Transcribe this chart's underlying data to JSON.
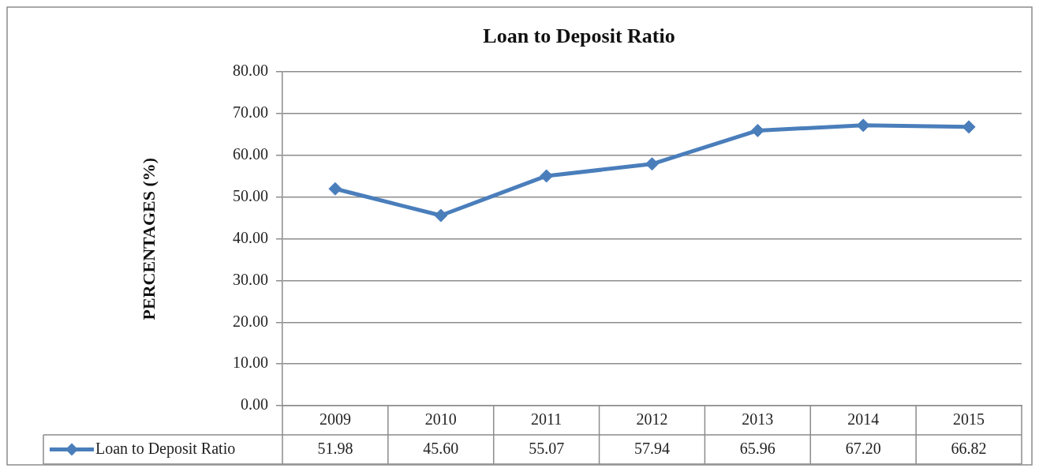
{
  "chart_data": {
    "type": "line",
    "title": "Loan to Deposit Ratio",
    "ylabel": "PERCENTAGES (%)",
    "categories": [
      "2009",
      "2010",
      "2011",
      "2012",
      "2013",
      "2014",
      "2015"
    ],
    "series": [
      {
        "name": "Loan to Deposit Ratio",
        "color": "#4a7ebb",
        "values": [
          51.98,
          45.6,
          55.07,
          57.94,
          65.96,
          67.2,
          66.82
        ],
        "value_labels": [
          "51.98",
          "45.60",
          "55.07",
          "57.94",
          "65.96",
          "67.20",
          "66.82"
        ]
      }
    ],
    "ylim": [
      0,
      80
    ],
    "yticks": [
      {
        "value": 0,
        "label": "0.00"
      },
      {
        "value": 10,
        "label": "10.00"
      },
      {
        "value": 20,
        "label": "20.00"
      },
      {
        "value": 30,
        "label": "30.00"
      },
      {
        "value": 40,
        "label": "40.00"
      },
      {
        "value": 50,
        "label": "50.00"
      },
      {
        "value": 60,
        "label": "60.00"
      },
      {
        "value": 70,
        "label": "70.00"
      },
      {
        "value": 80,
        "label": "80.00"
      }
    ],
    "grid": "y",
    "legend": "bottom left",
    "marker": "diamond",
    "line_style": "solid"
  }
}
